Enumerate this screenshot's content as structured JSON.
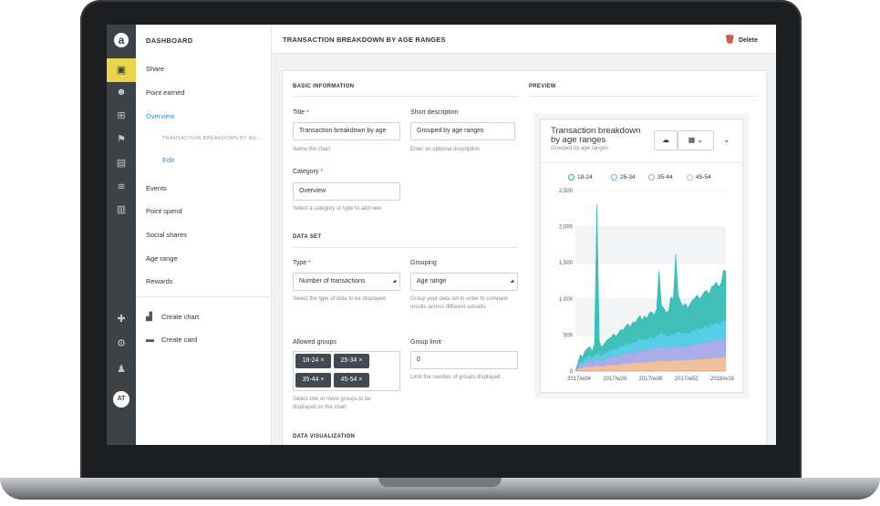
{
  "sidebar": {
    "logo": "a",
    "avatar": "AT",
    "icons": [
      "dashboard-icon",
      "users-icon",
      "gift-icon",
      "flag-icon",
      "chat-icon",
      "waves-icon",
      "inbox-icon",
      "puzzle-icon",
      "gear-icon",
      "user-settings-icon"
    ]
  },
  "nav": {
    "title": "DASHBOARD",
    "items": [
      {
        "label": "Share"
      },
      {
        "label": "Point earned"
      },
      {
        "label": "Overview"
      },
      {
        "label": "TRANSACTION BREAKDOWN BY AG..."
      },
      {
        "label": "Edit"
      },
      {
        "label": "Events"
      },
      {
        "label": "Point spend"
      },
      {
        "label": "Social shares"
      },
      {
        "label": "Age range"
      },
      {
        "label": "Rewards"
      }
    ],
    "actions": [
      {
        "label": "Create chart"
      },
      {
        "label": "Create card"
      }
    ]
  },
  "header": {
    "title": "TRANSACTION BREAKDOWN BY AGE RANGES",
    "delete_label": "Delete"
  },
  "form": {
    "basic_title": "BASIC INFORMATION",
    "title_label": "Title",
    "title_value": "Transaction breakdown by age",
    "title_help": "Name the chart",
    "desc_label": "Short description",
    "desc_value": "Grouped by age ranges",
    "desc_help": "Enter an optional description",
    "category_label": "Category",
    "category_value": "Overview",
    "category_help": "Select a category or type to add new",
    "dataset_title": "DATA SET",
    "type_label": "Type",
    "type_value": "Number of transactions",
    "type_help": "Select the type of data to be displayed",
    "grouping_label": "Grouping",
    "grouping_value": "Age range",
    "grouping_help": "Group your data set in order to compare results across different subsets",
    "allowed_label": "Allowed groups",
    "allowed_groups": [
      "18-24 ×",
      "25-34 ×",
      "35-44 ×",
      "45-54 ×"
    ],
    "allowed_help": "Select one or more groups to be displayed on the chart",
    "limit_label": "Group limit",
    "limit_value": "0",
    "limit_help": "Limit the number of groups displayed",
    "viz_title": "DATA VISUALIZATION",
    "required_mark": "*"
  },
  "preview": {
    "section_title": "PREVIEW",
    "widget_title": "Transaction breakdown by age ranges",
    "widget_subtitle": "Grouped by age ranges"
  },
  "colors": {
    "accent_yellow": "#e8d44d",
    "rail": "#3d4247",
    "link": "#2f8bd6",
    "danger": "#d23b2e",
    "tag": "#424950"
  },
  "chart_data": {
    "type": "area",
    "stacked": true,
    "series": [
      {
        "name": "18-24",
        "color": "#20b5ad",
        "values": [
          0,
          40,
          90,
          70,
          110,
          120,
          130,
          100,
          150,
          2050,
          180,
          120,
          140,
          160,
          170,
          180,
          200,
          190,
          210,
          230,
          220,
          250,
          260,
          240,
          280,
          270,
          300,
          320,
          280,
          310,
          300,
          330,
          340,
          320,
          350,
          880,
          380,
          360,
          330,
          340,
          520,
          480,
          1080,
          520,
          420,
          380,
          400,
          360,
          380,
          420,
          440,
          460,
          430,
          450,
          480,
          500,
          470,
          520,
          540,
          560,
          520,
          540,
          700,
          680
        ]
      },
      {
        "name": "25-34",
        "color": "#3bc6e0",
        "values": [
          0,
          20,
          40,
          40,
          50,
          60,
          70,
          60,
          70,
          80,
          80,
          70,
          80,
          90,
          90,
          100,
          110,
          100,
          110,
          120,
          120,
          130,
          140,
          130,
          140,
          140,
          150,
          160,
          150,
          160,
          150,
          170,
          170,
          160,
          180,
          180,
          190,
          180,
          170,
          170,
          180,
          180,
          190,
          190,
          190,
          180,
          190,
          180,
          190,
          200,
          200,
          210,
          200,
          210,
          220,
          220,
          210,
          230,
          230,
          240,
          230,
          240,
          250,
          250
        ]
      },
      {
        "name": "35-44",
        "color": "#9b9ee8",
        "values": [
          0,
          30,
          60,
          50,
          70,
          80,
          80,
          70,
          90,
          100,
          90,
          80,
          90,
          100,
          110,
          110,
          120,
          110,
          120,
          130,
          130,
          140,
          150,
          140,
          150,
          150,
          160,
          170,
          160,
          170,
          160,
          180,
          180,
          170,
          190,
          190,
          200,
          190,
          180,
          180,
          190,
          190,
          200,
          200,
          200,
          190,
          200,
          190,
          200,
          210,
          210,
          220,
          210,
          220,
          230,
          230,
          220,
          240,
          240,
          250,
          240,
          250,
          260,
          260
        ]
      },
      {
        "name": "45-54",
        "color": "#efb48a",
        "values": [
          0,
          20,
          40,
          35,
          50,
          55,
          60,
          50,
          65,
          70,
          65,
          60,
          65,
          75,
          80,
          80,
          85,
          80,
          85,
          95,
          95,
          100,
          105,
          100,
          110,
          110,
          115,
          120,
          115,
          125,
          120,
          130,
          130,
          125,
          140,
          140,
          145,
          140,
          135,
          135,
          140,
          145,
          150,
          150,
          150,
          145,
          150,
          145,
          150,
          155,
          160,
          165,
          160,
          165,
          170,
          170,
          165,
          180,
          180,
          185,
          180,
          185,
          190,
          190
        ]
      }
    ],
    "x_ticks": [
      "2017/w04",
      "2017/w20",
      "2017/w36",
      "2017/w52",
      "2018/w16"
    ],
    "y_ticks": [
      "0",
      "500",
      "1,000",
      "1,500",
      "2,000",
      "2,500"
    ],
    "ylim": [
      0,
      2500
    ],
    "legend_position": "top",
    "grid": true
  }
}
